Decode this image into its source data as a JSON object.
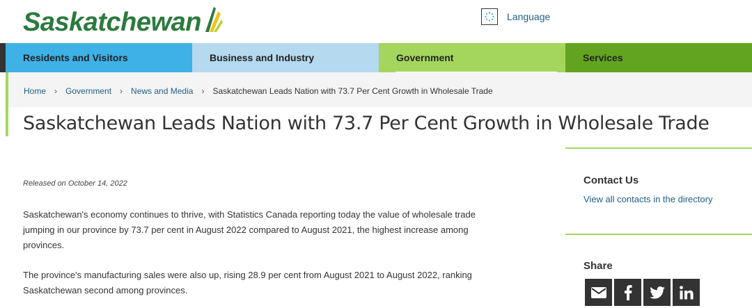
{
  "header": {
    "logo_text": "Saskatchewan",
    "language_label": "Language",
    "language_icon": "globe-loading-icon"
  },
  "nav": {
    "items": [
      {
        "label": "Residents and Visitors",
        "color": "#3eb1e6"
      },
      {
        "label": "Business and Industry",
        "color": "#b5d9ef"
      },
      {
        "label": "Government",
        "color": "#a4d65e",
        "active": true
      },
      {
        "label": "Services",
        "color": "#62a420"
      }
    ]
  },
  "breadcrumb": {
    "items": [
      "Home",
      "Government",
      "News and Media"
    ],
    "current": "Saskatchewan Leads Nation with 73.7 Per Cent Growth in Wholesale Trade"
  },
  "page": {
    "title": "Saskatchewan Leads Nation with 73.7 Per Cent Growth in Wholesale Trade",
    "released": "Released on October 14, 2022",
    "paragraphs": [
      "Saskatchewan's economy continues to thrive, with Statistics Canada reporting today the value of wholesale trade jumping in our province by 73.7 per cent in August 2022 compared to August 2021, the highest increase among provinces.",
      "The province's manufacturing sales were also up, rising 28.9 per cent from August 2021 to August 2022, ranking Saskatchewan second among provinces."
    ]
  },
  "sidebar": {
    "contact_heading": "Contact Us",
    "contact_link": "View all contacts in the directory",
    "share_heading": "Share",
    "share_icons": [
      "email-icon",
      "facebook-icon",
      "twitter-icon",
      "linkedin-icon"
    ]
  },
  "colors": {
    "brand_green": "#2b7a3d",
    "accent_green": "#a4d65e",
    "link_blue": "#1f5e86"
  }
}
